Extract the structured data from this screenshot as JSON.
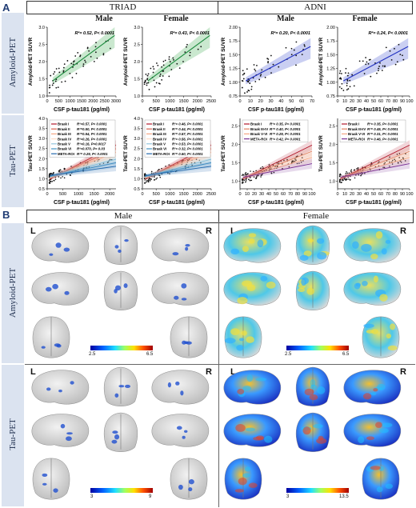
{
  "panels": {
    "a": {
      "letter": "A",
      "triad": "TRIAD",
      "adni": "ADNI",
      "male": "Male",
      "female": "Female",
      "row_amyloid": "Amyloid-PET",
      "row_tau": "Tau-PET"
    },
    "b": {
      "letter": "B",
      "male": "Male",
      "female": "Female",
      "row_amyloid": "Amyloid-PET",
      "row_tau": "Tau-PET",
      "L": "L",
      "R": "R",
      "colorbars": [
        {
          "min": "2.5",
          "max": "6.5"
        },
        {
          "min": "2.5",
          "max": "6.5"
        },
        {
          "min": "3",
          "max": "9"
        },
        {
          "min": "3",
          "max": "13.5"
        }
      ]
    }
  },
  "chart_data": [
    {
      "type": "scatter",
      "cohort": "TRIAD",
      "sex": "Male",
      "title": "Male",
      "xlabel": "CSF p-tau181 (pg/ml)",
      "ylabel": "Amyloid-PET SUVR",
      "annotation": "R²= 0.52, P< 0.0001",
      "xticks": [
        "0",
        "500",
        "1000",
        "1500",
        "2000",
        "2500",
        "3000"
      ],
      "yticks": [
        "1.0",
        "1.5",
        "2.0",
        "2.5",
        "3.0"
      ],
      "xlim": [
        0,
        3000
      ],
      "ylim": [
        1.0,
        3.0
      ]
    },
    {
      "type": "scatter",
      "cohort": "TRIAD",
      "sex": "Female",
      "title": "Female",
      "xlabel": "CSF p-tau181 (pg/ml)",
      "ylabel": "Amyloid-PET SUVR",
      "annotation": "R²= 0.43, P< 0.0001",
      "xticks": [
        "0",
        "500",
        "1000",
        "1500",
        "2000",
        "2500"
      ],
      "yticks": [
        "1.0",
        "1.5",
        "2.0",
        "2.5",
        "3.0"
      ],
      "xlim": [
        0,
        2500
      ],
      "ylim": [
        1.0,
        3.0
      ]
    },
    {
      "type": "scatter",
      "cohort": "ADNI",
      "sex": "Male",
      "title": "Male",
      "xlabel": "CSF p-tau181 (pg/ml)",
      "ylabel": "Amyloid-PET SUVR",
      "annotation": "R²= 0.20, P< 0.0001",
      "xticks": [
        "0",
        "10",
        "20",
        "30",
        "40",
        "50",
        "60",
        "70"
      ],
      "yticks": [
        "0.75",
        "1.00",
        "1.25",
        "1.50",
        "1.75",
        "2.00"
      ],
      "xlim": [
        0,
        70
      ],
      "ylim": [
        0.75,
        2.0
      ]
    },
    {
      "type": "scatter",
      "cohort": "ADNI",
      "sex": "Female",
      "title": "Female",
      "xlabel": "CSF p-tau181 (pg/ml)",
      "ylabel": "Amyloid-PET SUVR",
      "annotation": "R²= 0.24, P< 0.0001",
      "xticks": [
        "0",
        "10",
        "20",
        "30",
        "40",
        "50",
        "60",
        "70",
        "80",
        "90",
        "100"
      ],
      "yticks": [
        "0.75",
        "1.00",
        "1.25",
        "1.50",
        "1.75",
        "2.00"
      ],
      "xlim": [
        0,
        100
      ],
      "ylim": [
        0.75,
        2.0
      ]
    },
    {
      "type": "scatter",
      "cohort": "TRIAD",
      "sex": "Male",
      "xlabel": "CSF p-tau181 (pg/ml)",
      "ylabel": "Tau-PET SUVR",
      "xticks": [
        "0",
        "500",
        "1000",
        "1500",
        "2000"
      ],
      "yticks": [
        "0.5",
        "1.0",
        "1.5",
        "2.0",
        "2.5",
        "3.0",
        "3.5",
        "4.0"
      ],
      "xlim": [
        0,
        2200
      ],
      "ylim": [
        0.5,
        4.0
      ],
      "legend": [
        {
          "name": "Braak I",
          "stat": "R²=0.57, P< 0.0001",
          "color": "#b2182b"
        },
        {
          "name": "Braak II",
          "stat": "R²=0.50, P< 0.0001",
          "color": "#d6604d"
        },
        {
          "name": "Braak III",
          "stat": "R²=0.54, P< 0.0001",
          "color": "#f4a582"
        },
        {
          "name": "Braak IV",
          "stat": "R²=0.26, P< 0.0001",
          "color": "#fddbc7"
        },
        {
          "name": "Braak V",
          "stat": "R²=0.16, P=0.0017",
          "color": "#92c5de"
        },
        {
          "name": "Braak VI",
          "stat": "R²=0.070, P= 0.03",
          "color": "#4393c3"
        },
        {
          "name": "META-ROI",
          "stat": "R²= 0.29, P< 0.0001",
          "color": "#2166ac"
        }
      ]
    },
    {
      "type": "scatter",
      "cohort": "TRIAD",
      "sex": "Female",
      "xlabel": "CSF p-tau181 (pg/ml)",
      "ylabel": "Tau-PET SUVR",
      "xticks": [
        "0",
        "500",
        "1000",
        "1500",
        "2000",
        "2500"
      ],
      "yticks": [
        "0.5",
        "1.0",
        "1.5",
        "2.0",
        "2.5",
        "3.0",
        "3.5",
        "4.0"
      ],
      "xlim": [
        0,
        2500
      ],
      "ylim": [
        0.5,
        4.0
      ],
      "legend": [
        {
          "name": "Braak I",
          "stat": "R²= 0.46, P< 0.0001",
          "color": "#b2182b"
        },
        {
          "name": "Braak II",
          "stat": "R²= 0.44, P< 0.0001",
          "color": "#d6604d"
        },
        {
          "name": "Braak III",
          "stat": "R²= 0.57, P< 0.0001",
          "color": "#f4a582"
        },
        {
          "name": "Braak IV",
          "stat": "R²= 0.56, P< 0.0001",
          "color": "#fddbc7"
        },
        {
          "name": "Braak V",
          "stat": "R²= 0.53, P< 0.0001",
          "color": "#92c5de"
        },
        {
          "name": "Braak VI",
          "stat": "R²= 0.32, P< 0.0001",
          "color": "#4393c3"
        },
        {
          "name": "META-ROI",
          "stat": "R²= 0.60, P< 0.0001",
          "color": "#2166ac"
        }
      ]
    },
    {
      "type": "scatter",
      "cohort": "ADNI",
      "sex": "Male",
      "xlabel": "CSF p-tau181 (pg/ml)",
      "ylabel": "Tau-PET SUVR",
      "xticks": [
        "0",
        "10",
        "20",
        "30",
        "40",
        "50",
        "60",
        "70",
        "80",
        "90",
        "100"
      ],
      "yticks": [
        "1.0",
        "1.5",
        "2.0",
        "2.5"
      ],
      "xlim": [
        0,
        100
      ],
      "ylim": [
        0.8,
        2.7
      ],
      "legend": [
        {
          "name": "Braak I",
          "stat": "R²= 0.35, P< 0.0001",
          "color": "#b2182b"
        },
        {
          "name": "Braak III-IV",
          "stat": "R²= 0.40, P< 0.0001",
          "color": "#e08060"
        },
        {
          "name": "Braak V-VI",
          "stat": "R²= 0.29, P< 0.0001",
          "color": "#f4a582"
        },
        {
          "name": "META-ROI",
          "stat": "R²= 0.42, P< 0.0001",
          "color": "#7b3294"
        }
      ]
    },
    {
      "type": "scatter",
      "cohort": "ADNI",
      "sex": "Female",
      "xlabel": "CSF p-tau181 (pg/ml)",
      "ylabel": "Tau-PET SUVR",
      "xticks": [
        "0",
        "10",
        "20",
        "30",
        "40",
        "50",
        "60",
        "70",
        "80",
        "90",
        "100"
      ],
      "yticks": [
        "1.0",
        "1.5",
        "2.0",
        "2.5"
      ],
      "xlim": [
        0,
        100
      ],
      "ylim": [
        0.8,
        2.7
      ],
      "legend": [
        {
          "name": "Braak I",
          "stat": "R²= 0.35, P< 0.0001",
          "color": "#b2182b"
        },
        {
          "name": "Braak III-IV",
          "stat": "R²= 0.45, P< 0.0001",
          "color": "#e08060"
        },
        {
          "name": "Braak V-VI",
          "stat": "R²= 0.31, P< 0.0001",
          "color": "#f4a582"
        },
        {
          "name": "META-ROI",
          "stat": "R²= 0.46, P< 0.0001",
          "color": "#7b3294"
        }
      ]
    }
  ]
}
